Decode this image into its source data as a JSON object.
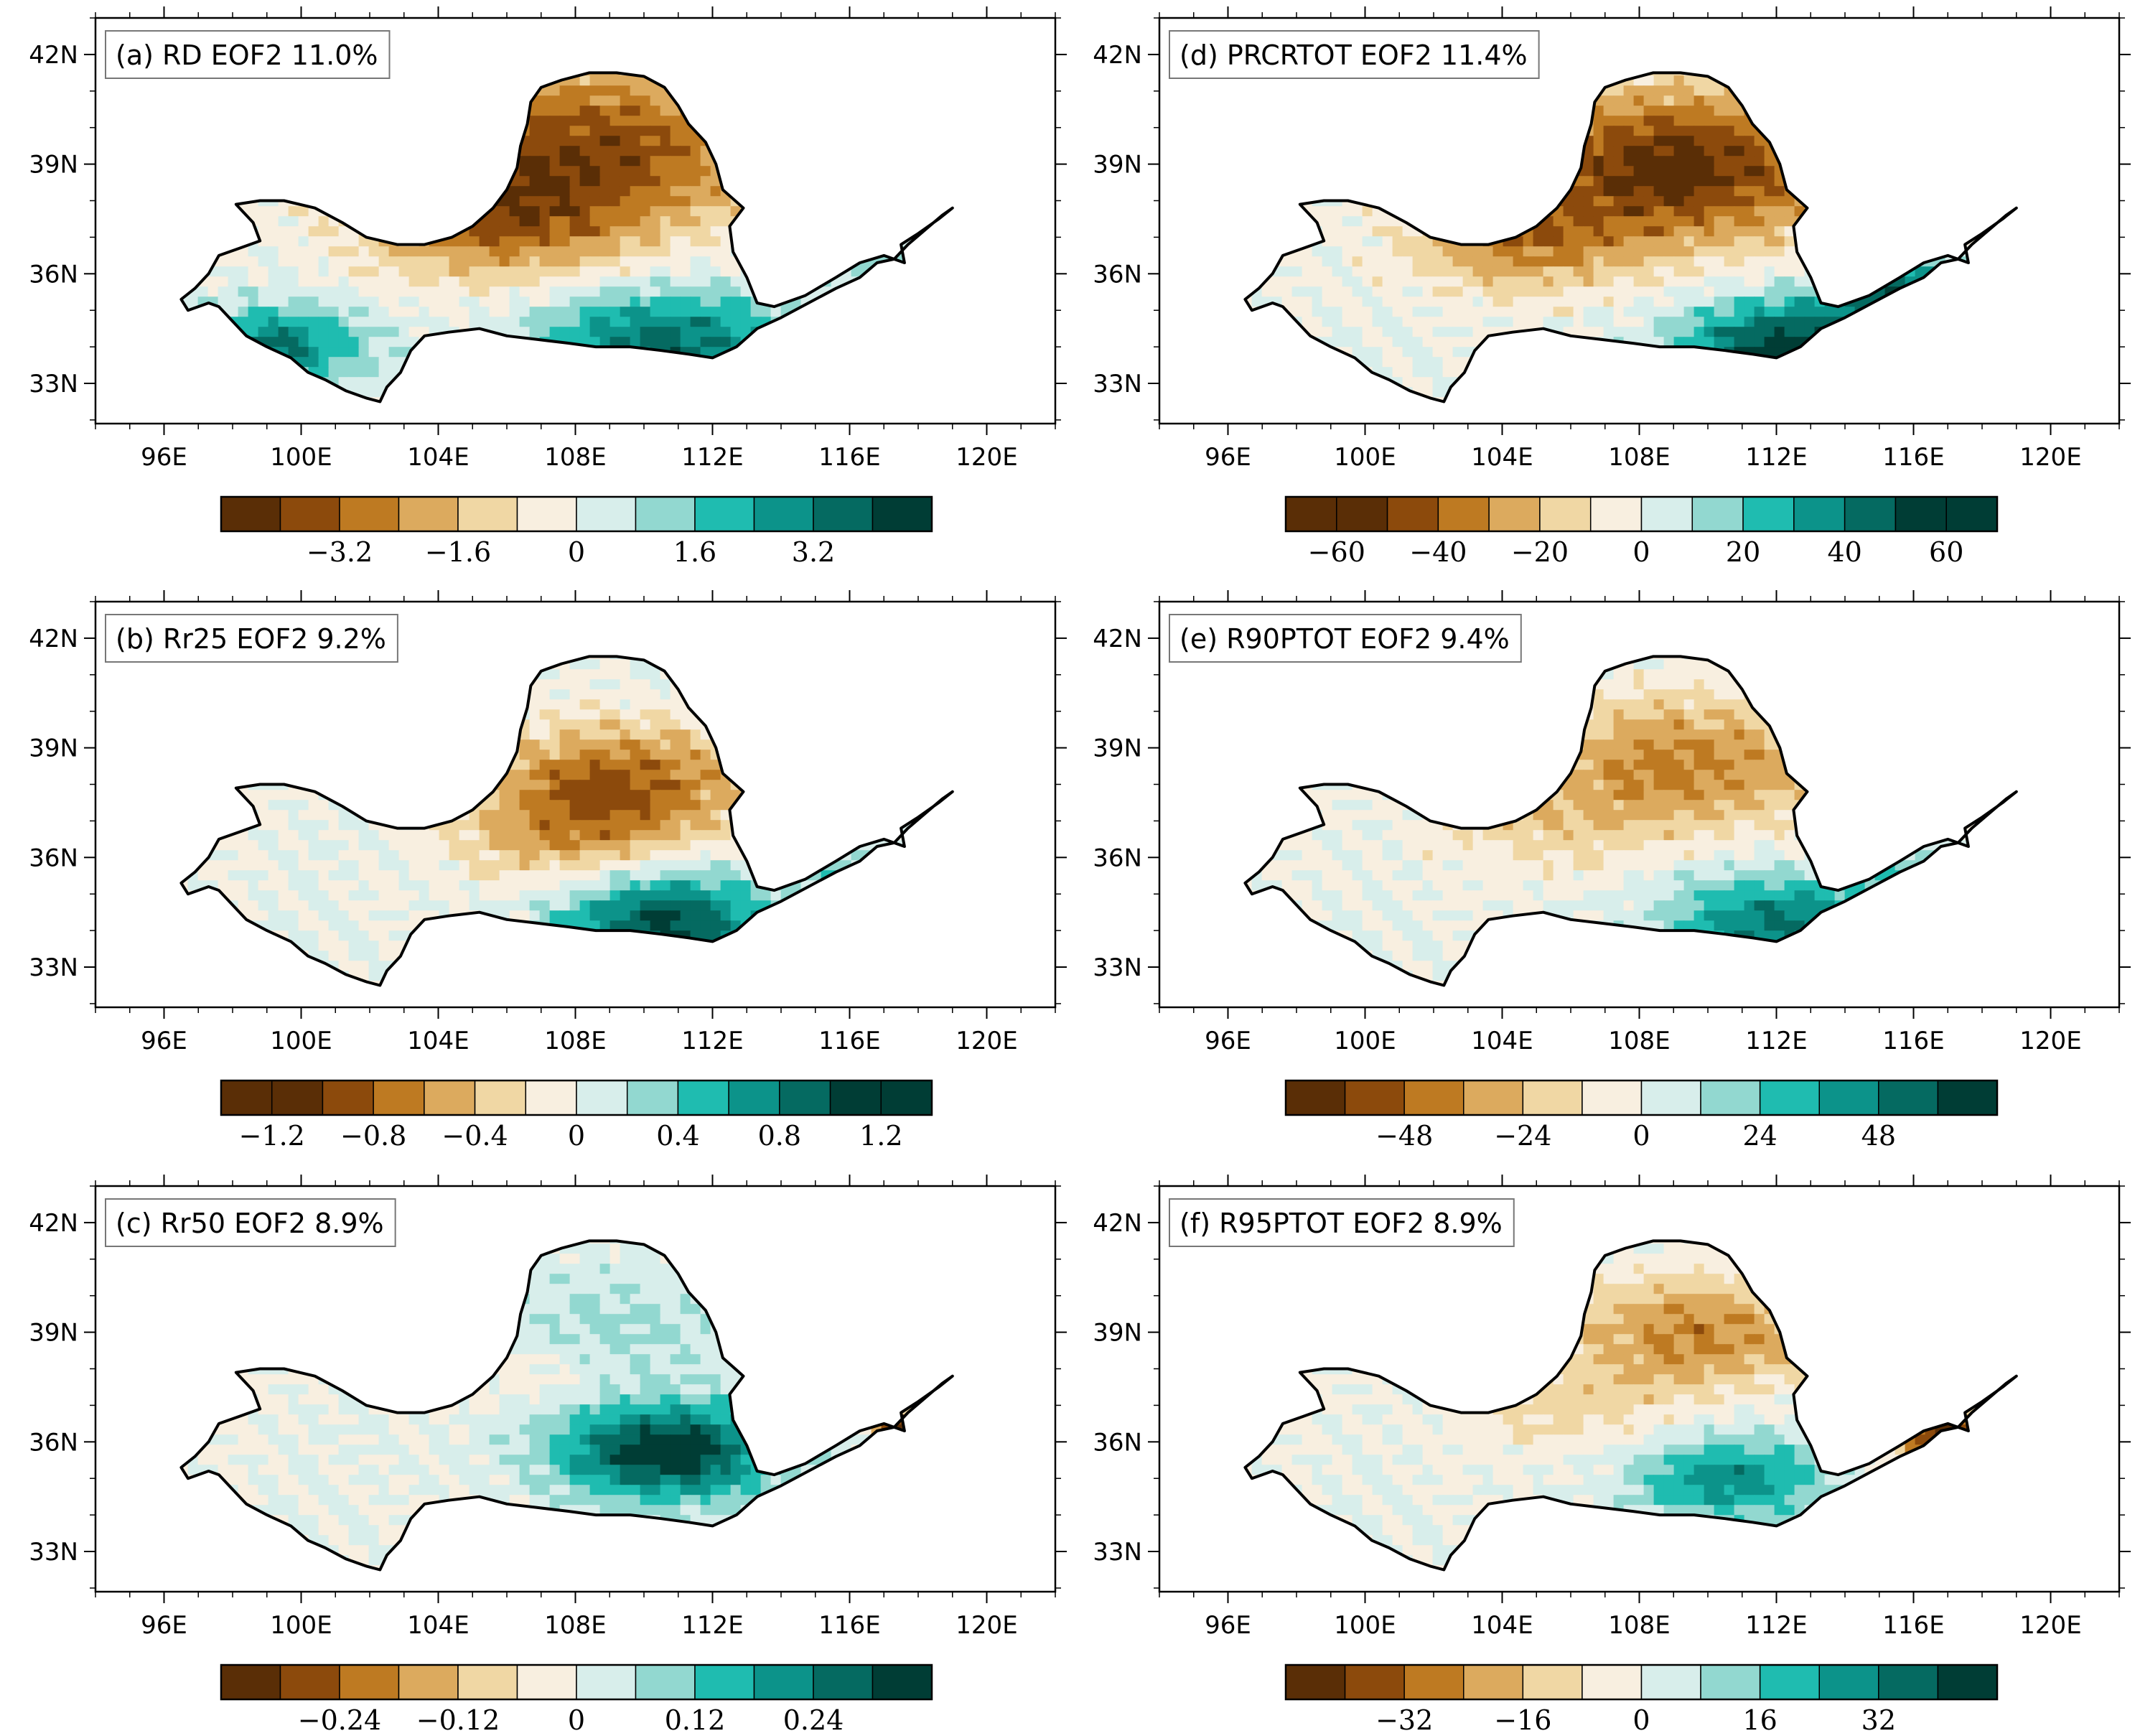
{
  "figure": {
    "palette_brown_teal": [
      "#5a2e06",
      "#8c4a0c",
      "#be7a22",
      "#dcaa5e",
      "#f0d7a4",
      "#f8efe0",
      "#d8eeeb",
      "#92d8d0",
      "#1fbcb0",
      "#0c938a",
      "#056a61",
      "#003d35"
    ],
    "map_outline_color": "#000000"
  },
  "chart_data": [
    {
      "type": "heatmap",
      "panel": "a",
      "title": "(a) RD EOF2 11.0%",
      "x_ticks": [
        "96E",
        "100E",
        "104E",
        "108E",
        "112E",
        "116E",
        "120E"
      ],
      "x_tick_values": [
        96,
        100,
        104,
        108,
        112,
        116,
        120
      ],
      "y_ticks": [
        "33N",
        "36N",
        "39N",
        "42N"
      ],
      "y_tick_values": [
        33,
        36,
        39,
        42
      ],
      "xlim": [
        94,
        122
      ],
      "ylim": [
        31.9,
        43
      ],
      "pattern": "negative (brown) over northern basin / Hetao, positive (teal) over southern basin and western headwaters",
      "colorbar": {
        "n_colors": 12,
        "tick_labels": [
          "−3.2",
          "−1.6",
          "0",
          "1.6",
          "3.2"
        ],
        "tick_values": [
          -3.2,
          -1.6,
          0,
          1.6,
          3.2
        ],
        "range": [
          -4.8,
          4.8
        ]
      }
    },
    {
      "type": "heatmap",
      "panel": "b",
      "title": "(b) Rr25 EOF2 9.2%",
      "x_ticks": [
        "96E",
        "100E",
        "104E",
        "108E",
        "112E",
        "116E",
        "120E"
      ],
      "x_tick_values": [
        96,
        100,
        104,
        108,
        112,
        116,
        120
      ],
      "y_ticks": [
        "33N",
        "36N",
        "39N",
        "42N"
      ],
      "y_tick_values": [
        33,
        36,
        39,
        42
      ],
      "xlim": [
        94,
        122
      ],
      "ylim": [
        31.9,
        43
      ],
      "pattern": "negative over northeast loop, positive over southeast basin",
      "colorbar": {
        "n_colors": 14,
        "tick_labels": [
          "−1.2",
          "−0.8",
          "−0.4",
          "0",
          "0.4",
          "0.8",
          "1.2"
        ],
        "tick_values": [
          -1.2,
          -0.8,
          -0.4,
          0,
          0.4,
          0.8,
          1.2
        ],
        "range": [
          -1.4,
          1.4
        ]
      }
    },
    {
      "type": "heatmap",
      "panel": "c",
      "title": "(c) Rr50 EOF2 8.9%",
      "x_ticks": [
        "96E",
        "100E",
        "104E",
        "108E",
        "112E",
        "116E",
        "120E"
      ],
      "x_tick_values": [
        96,
        100,
        104,
        108,
        112,
        116,
        120
      ],
      "y_ticks": [
        "33N",
        "36N",
        "39N",
        "42N"
      ],
      "y_tick_values": [
        33,
        36,
        39,
        42
      ],
      "xlim": [
        94,
        122
      ],
      "ylim": [
        31.9,
        43
      ],
      "pattern": "strong positive over southeast basin, strong negative at downstream end",
      "colorbar": {
        "n_colors": 12,
        "tick_labels": [
          "−0.24",
          "−0.12",
          "0",
          "0.12",
          "0.24"
        ],
        "tick_values": [
          -0.24,
          -0.12,
          0,
          0.12,
          0.24
        ],
        "range": [
          -0.36,
          0.36
        ]
      }
    },
    {
      "type": "heatmap",
      "panel": "d",
      "title": "(d) PRCRTOT EOF2 11.4%",
      "x_ticks": [
        "96E",
        "100E",
        "104E",
        "108E",
        "112E",
        "116E",
        "120E"
      ],
      "x_tick_values": [
        96,
        100,
        104,
        108,
        112,
        116,
        120
      ],
      "y_ticks": [
        "33N",
        "36N",
        "39N",
        "42N"
      ],
      "y_tick_values": [
        33,
        36,
        39,
        42
      ],
      "xlim": [
        94,
        122
      ],
      "ylim": [
        31.9,
        43
      ],
      "pattern": "negative over north, positive over southeast and lower reaches",
      "colorbar": {
        "n_colors": 14,
        "tick_labels": [
          "−60",
          "−40",
          "−20",
          "0",
          "20",
          "40",
          "60"
        ],
        "tick_values": [
          -60,
          -40,
          -20,
          0,
          20,
          40,
          60
        ],
        "range": [
          -70,
          70
        ]
      }
    },
    {
      "type": "heatmap",
      "panel": "e",
      "title": "(e) R90PTOT EOF2 9.4%",
      "x_ticks": [
        "96E",
        "100E",
        "104E",
        "108E",
        "112E",
        "116E",
        "120E"
      ],
      "x_tick_values": [
        96,
        100,
        104,
        108,
        112,
        116,
        120
      ],
      "y_ticks": [
        "33N",
        "36N",
        "39N",
        "42N"
      ],
      "y_tick_values": [
        33,
        36,
        39,
        42
      ],
      "xlim": [
        94,
        122
      ],
      "ylim": [
        31.9,
        43
      ],
      "pattern": "negative over north-central, positive over southeast",
      "colorbar": {
        "n_colors": 12,
        "tick_labels": [
          "−48",
          "−24",
          "0",
          "24",
          "48"
        ],
        "tick_values": [
          -48,
          -24,
          0,
          24,
          48
        ],
        "range": [
          -72,
          72
        ]
      }
    },
    {
      "type": "heatmap",
      "panel": "f",
      "title": "(f) R95PTOT EOF2 8.9%",
      "x_ticks": [
        "96E",
        "100E",
        "104E",
        "108E",
        "112E",
        "116E",
        "120E"
      ],
      "x_tick_values": [
        96,
        100,
        104,
        108,
        112,
        116,
        120
      ],
      "y_ticks": [
        "33N",
        "36N",
        "39N",
        "42N"
      ],
      "y_tick_values": [
        33,
        36,
        39,
        42
      ],
      "xlim": [
        94,
        122
      ],
      "ylim": [
        31.9,
        43
      ],
      "pattern": "negative over north and downstream end, positive over southeast",
      "colorbar": {
        "n_colors": 12,
        "tick_labels": [
          "−32",
          "−16",
          "0",
          "16",
          "32"
        ],
        "tick_values": [
          -32,
          -16,
          0,
          16,
          32
        ],
        "range": [
          -48,
          48
        ]
      }
    }
  ]
}
